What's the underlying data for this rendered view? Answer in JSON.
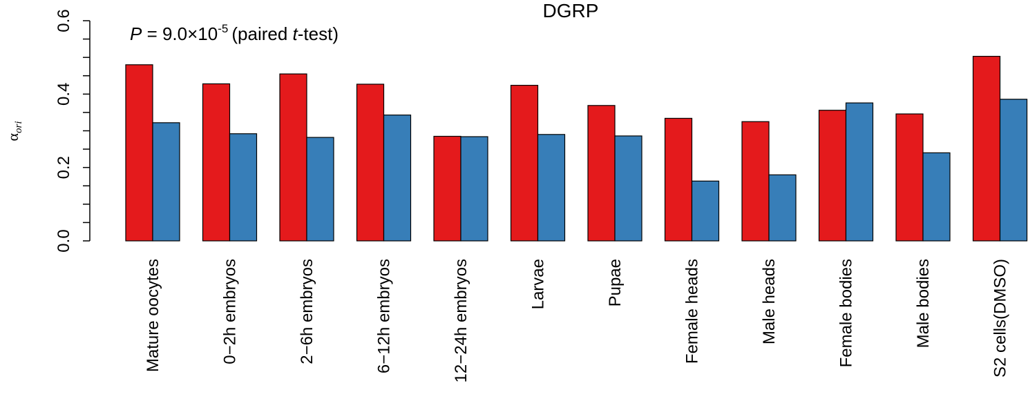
{
  "chart_data": {
    "type": "bar",
    "title": "DGRP",
    "annotation": {
      "p_symbol": "P",
      "p_equals": " = 9.0×10",
      "p_exponent": "-5",
      "test_open": "(paired ",
      "test_italic": "t",
      "test_close": "-test)"
    },
    "ylabel": "α",
    "ylabel_sub": "ori",
    "ylim": [
      0,
      0.6
    ],
    "yticks": [
      0.0,
      0.2,
      0.4,
      0.6
    ],
    "ytick_labels": [
      "0.0",
      "0.2",
      "0.4",
      "0.6"
    ],
    "categories": [
      "Mature oocytes",
      "0−2h embryos",
      "2−6h embryos",
      "6−12h embryos",
      "12−24h embryos",
      "Larvae",
      "Pupae",
      "Female heads",
      "Male heads",
      "Female bodies",
      "Male bodies",
      "S2 cells(DMSO)"
    ],
    "series": [
      {
        "color": "#E41A1C",
        "values": [
          0.48,
          0.428,
          0.455,
          0.427,
          0.285,
          0.424,
          0.369,
          0.334,
          0.325,
          0.356,
          0.346,
          0.503
        ]
      },
      {
        "color": "#377EB8",
        "values": [
          0.322,
          0.292,
          0.282,
          0.343,
          0.284,
          0.29,
          0.286,
          0.163,
          0.18,
          0.376,
          0.24,
          0.386
        ]
      }
    ],
    "grid": false,
    "legend": "none"
  }
}
